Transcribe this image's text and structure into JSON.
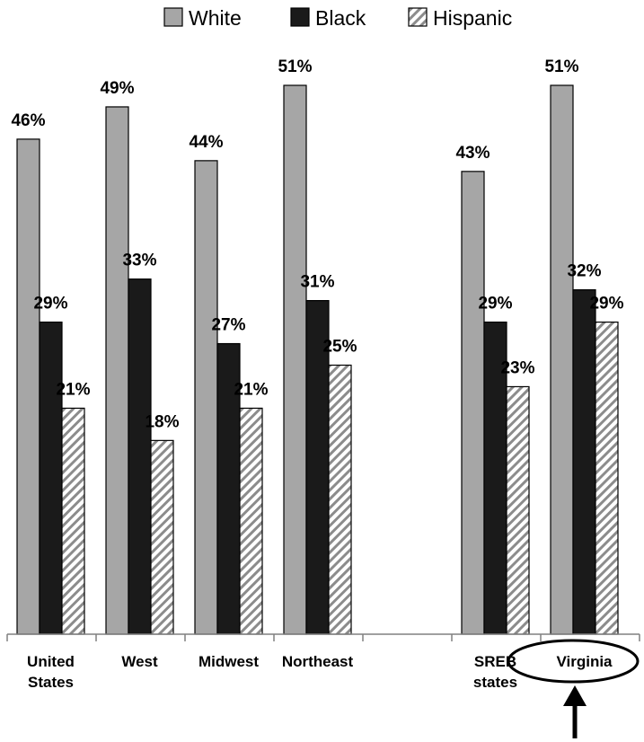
{
  "chart_data": {
    "type": "bar",
    "categories": [
      [
        "United",
        "States"
      ],
      [
        "West"
      ],
      [
        "Midwest"
      ],
      [
        "Northeast"
      ],
      [
        "SREB",
        "states"
      ],
      [
        "Virginia"
      ]
    ],
    "series": [
      {
        "name": "White",
        "values": [
          46,
          49,
          44,
          51,
          43,
          51
        ],
        "labels": [
          "46%",
          "49%",
          "44%",
          "51%",
          "43%",
          "51%"
        ]
      },
      {
        "name": "Black",
        "values": [
          29,
          33,
          27,
          31,
          29,
          32
        ],
        "labels": [
          "29%",
          "33%",
          "27%",
          "31%",
          "29%",
          "32%"
        ]
      },
      {
        "name": "Hispanic",
        "values": [
          21,
          18,
          21,
          25,
          23,
          29
        ],
        "labels": [
          "21%",
          "18%",
          "21%",
          "25%",
          "23%",
          "29%"
        ]
      }
    ],
    "highlighted_category": "Virginia",
    "ylim": [
      0,
      51
    ],
    "legend_position": "top-center",
    "colors": {
      "White": "#a6a6a6",
      "Black": "#1a1a1a",
      "Hispanic": "hatched",
      "outline": "#000000",
      "axis": "#808080"
    }
  }
}
